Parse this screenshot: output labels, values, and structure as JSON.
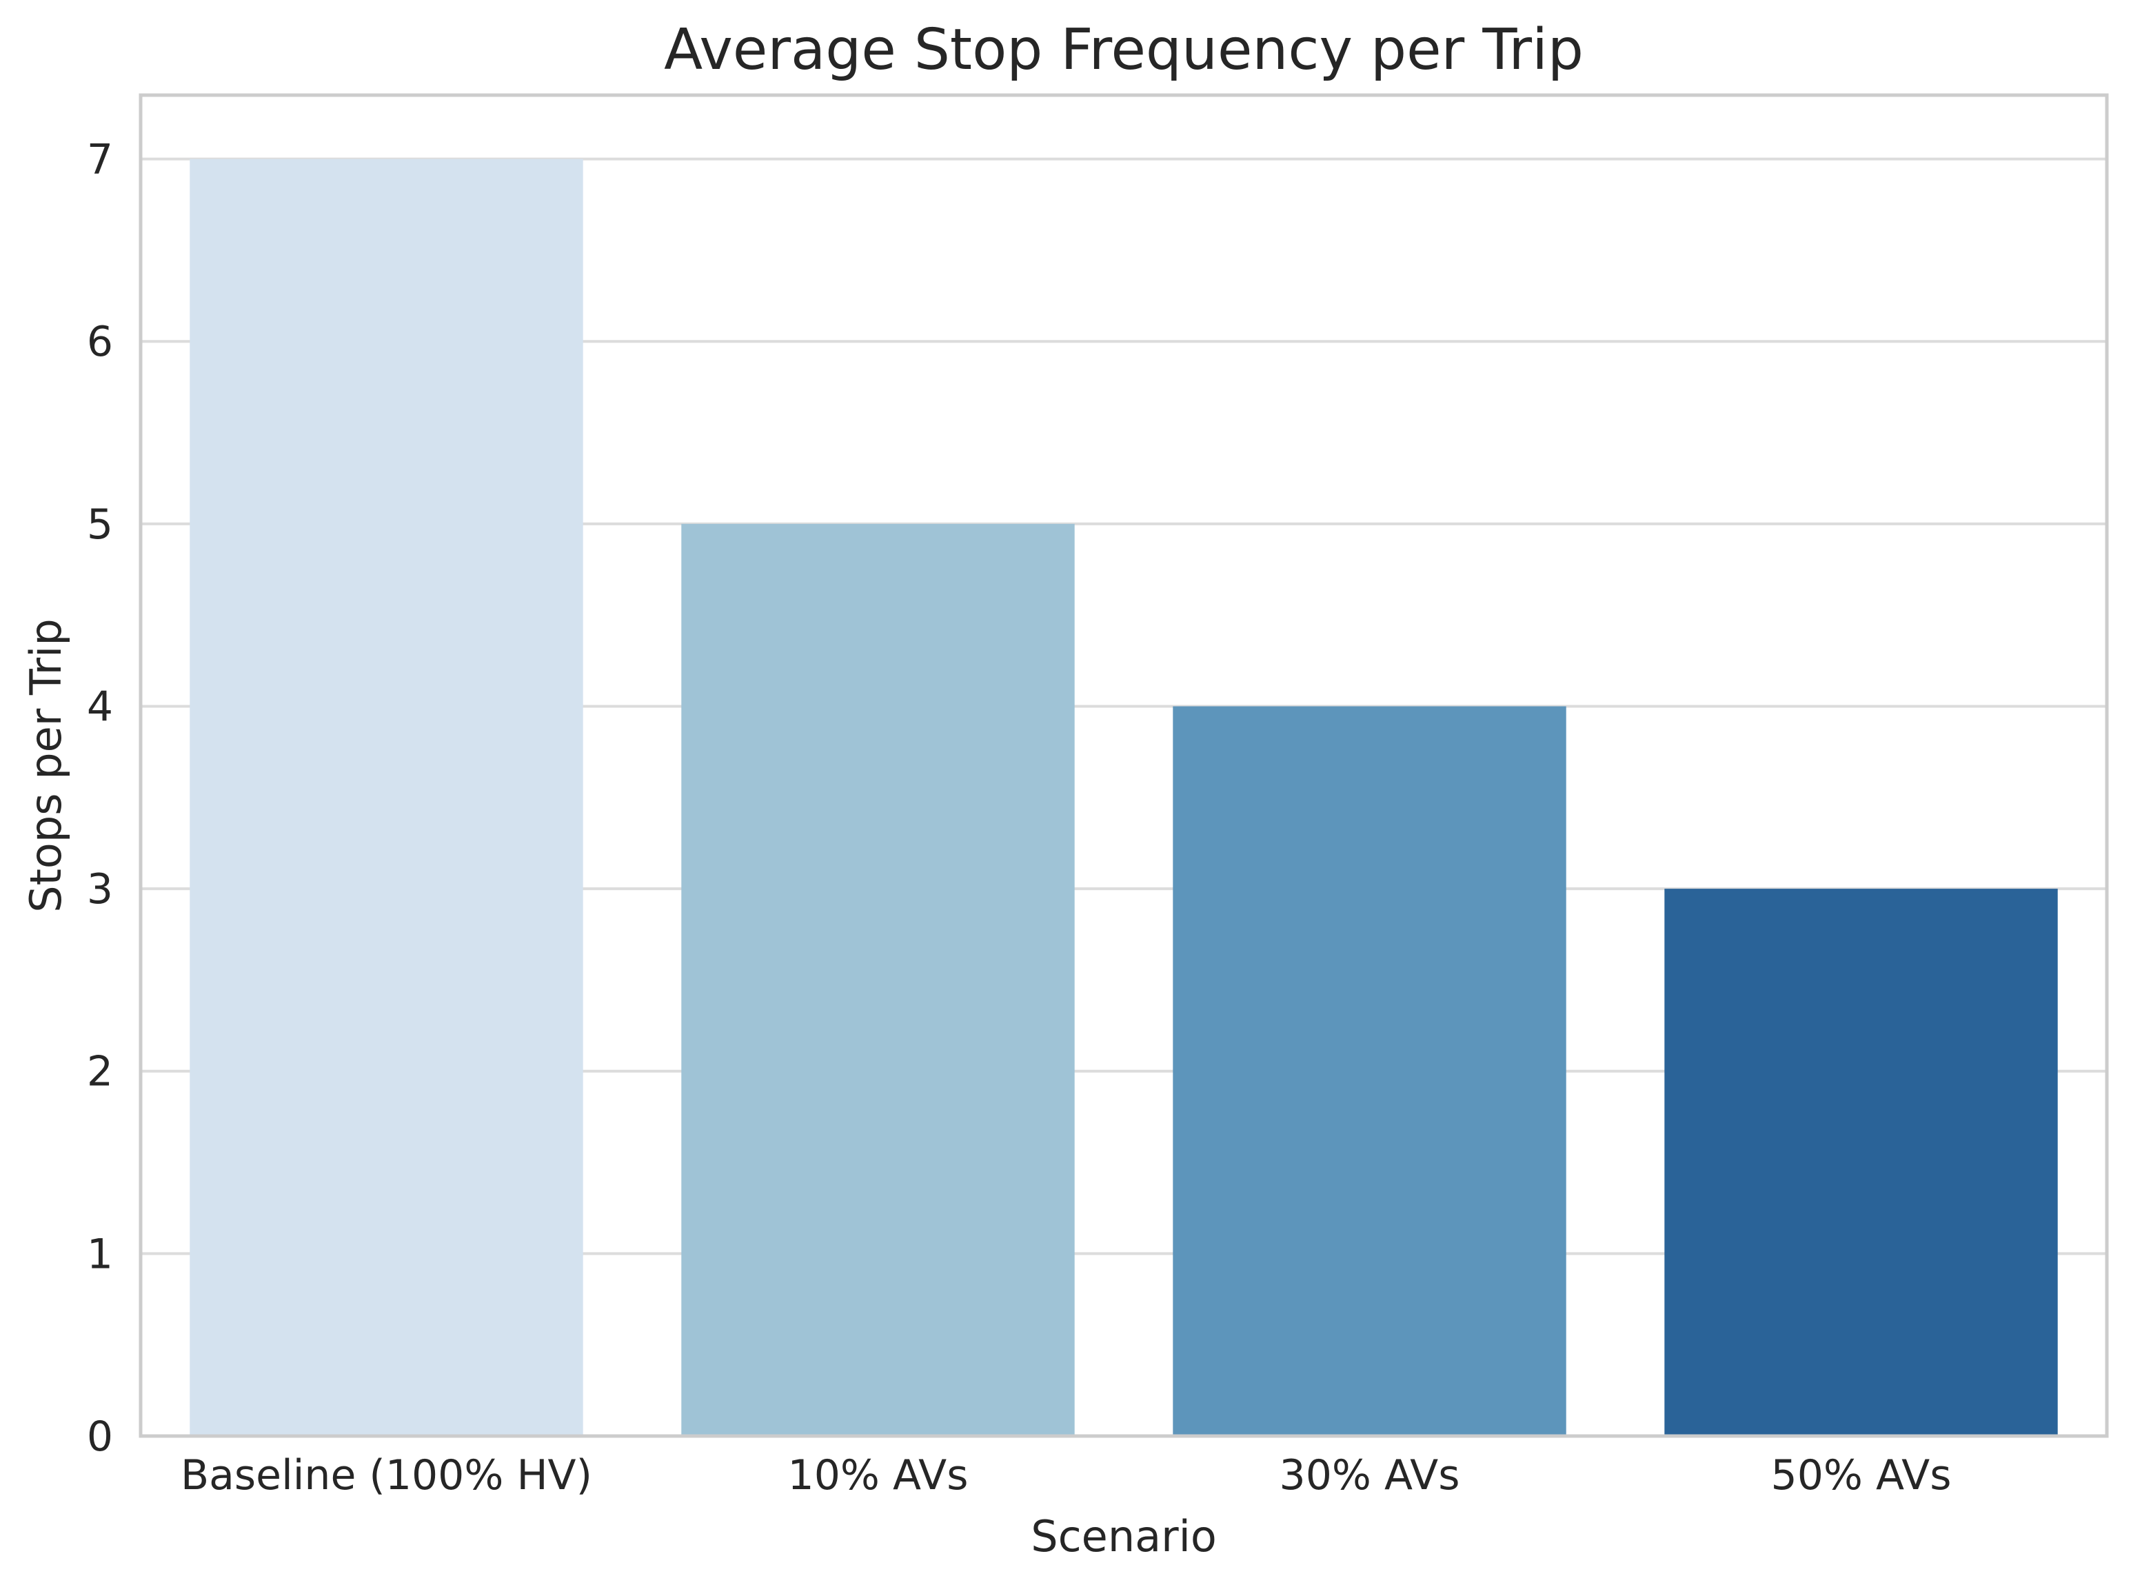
{
  "chart_data": {
    "type": "bar",
    "title": "Average Stop Frequency per Trip",
    "xlabel": "Scenario",
    "ylabel": "Stops per Trip",
    "categories": [
      "Baseline (100% HV)",
      "10% AVs",
      "30% AVs",
      "50% AVs"
    ],
    "values": [
      7,
      5,
      4,
      3
    ],
    "colors": [
      "#d4e2ef",
      "#9fc3d6",
      "#5d95bb",
      "#2a6398"
    ],
    "ylim": [
      0,
      7.35
    ],
    "yticks": [
      0,
      1,
      2,
      3,
      4,
      5,
      6,
      7
    ],
    "grid": true,
    "legend": "none"
  }
}
